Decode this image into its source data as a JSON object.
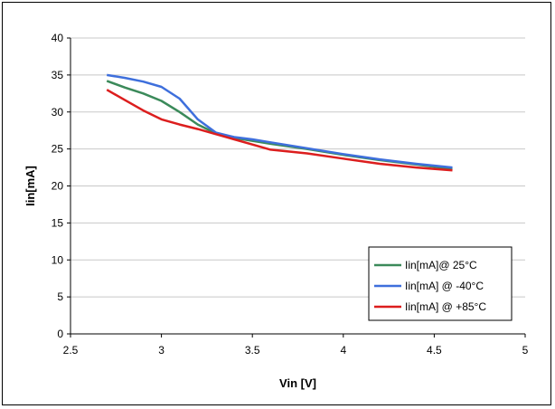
{
  "chart_data": {
    "type": "line",
    "xlabel": "Vin [V]",
    "ylabel": "Iin[mA]",
    "xlim": [
      2.5,
      5
    ],
    "ylim": [
      0,
      40
    ],
    "xticks": [
      "2.5",
      "3",
      "3.5",
      "4",
      "4.5",
      "5"
    ],
    "yticks": [
      "0",
      "5",
      "10",
      "15",
      "20",
      "25",
      "30",
      "35",
      "40"
    ],
    "grid": "horizontal",
    "legend_position": "bottom-right",
    "series": [
      {
        "name": "Iin[mA]@ 25°C",
        "color": "#3b8a5a",
        "x": [
          2.7,
          2.8,
          2.9,
          3.0,
          3.1,
          3.2,
          3.3,
          3.4,
          3.5,
          3.6,
          3.8,
          4.0,
          4.2,
          4.4,
          4.6
        ],
        "y": [
          34.2,
          33.3,
          32.5,
          31.5,
          30.0,
          28.3,
          27.1,
          26.5,
          26.1,
          25.7,
          25.0,
          24.2,
          23.5,
          22.9,
          22.3
        ]
      },
      {
        "name": "Iin[mA] @ -40°C",
        "color": "#3e6fdc",
        "x": [
          2.7,
          2.8,
          2.9,
          3.0,
          3.1,
          3.2,
          3.3,
          3.4,
          3.5,
          3.6,
          3.8,
          4.0,
          4.2,
          4.4,
          4.6
        ],
        "y": [
          35.0,
          34.6,
          34.1,
          33.4,
          31.8,
          29.0,
          27.2,
          26.6,
          26.3,
          25.9,
          25.1,
          24.3,
          23.6,
          23.0,
          22.5
        ]
      },
      {
        "name": "Iin[mA] @ +85°C",
        "color": "#dc1e1e",
        "x": [
          2.7,
          2.8,
          2.9,
          3.0,
          3.1,
          3.2,
          3.3,
          3.4,
          3.5,
          3.6,
          3.8,
          4.0,
          4.2,
          4.4,
          4.6
        ],
        "y": [
          33.0,
          31.6,
          30.2,
          29.0,
          28.3,
          27.7,
          27.0,
          26.3,
          25.6,
          24.9,
          24.4,
          23.7,
          23.0,
          22.5,
          22.1
        ]
      }
    ]
  }
}
